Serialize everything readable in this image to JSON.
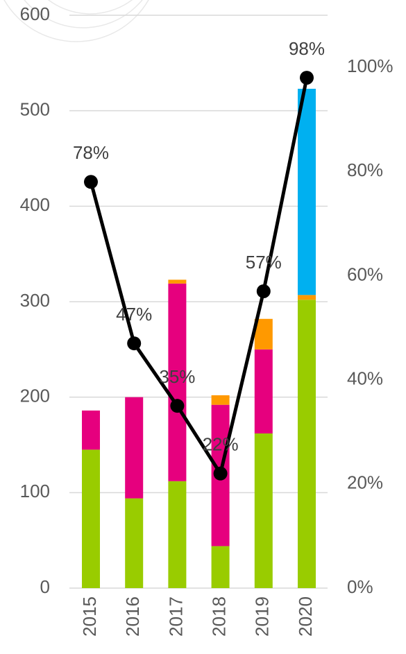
{
  "chart_data": {
    "type": "bar",
    "categories": [
      "2015",
      "2016",
      "2017",
      "2018",
      "2019",
      "2020"
    ],
    "series": [
      {
        "color": "#99cc00",
        "values": [
          145,
          94,
          112,
          44,
          162,
          302
        ]
      },
      {
        "color": "#e6007e",
        "values": [
          41,
          106,
          207,
          148,
          88,
          0
        ]
      },
      {
        "color": "#ff9900",
        "values": [
          0,
          0,
          4,
          10,
          32,
          5
        ]
      },
      {
        "color": "#00b0f0",
        "values": [
          0,
          0,
          0,
          0,
          0,
          216
        ]
      },
      {
        "type": "line",
        "axis": "y2",
        "color": "#000000",
        "values": [
          78,
          47,
          35,
          22,
          57,
          98
        ],
        "value_labels": [
          "78%",
          "47%",
          "35%",
          "22%",
          "57%",
          "98%"
        ]
      }
    ],
    "ylim": [
      0,
      600
    ],
    "yticks": [
      0,
      100,
      200,
      300,
      400,
      500,
      600
    ],
    "y2lim": [
      0,
      110
    ],
    "y2ticks": [
      {
        "value": 0,
        "label": "0%"
      },
      {
        "value": 20,
        "label": "20%"
      },
      {
        "value": 40,
        "label": "40%"
      },
      {
        "value": 60,
        "label": "60%"
      },
      {
        "value": 80,
        "label": "80%"
      },
      {
        "value": 100,
        "label": "100%"
      }
    ],
    "grid": true,
    "stacked": true
  }
}
